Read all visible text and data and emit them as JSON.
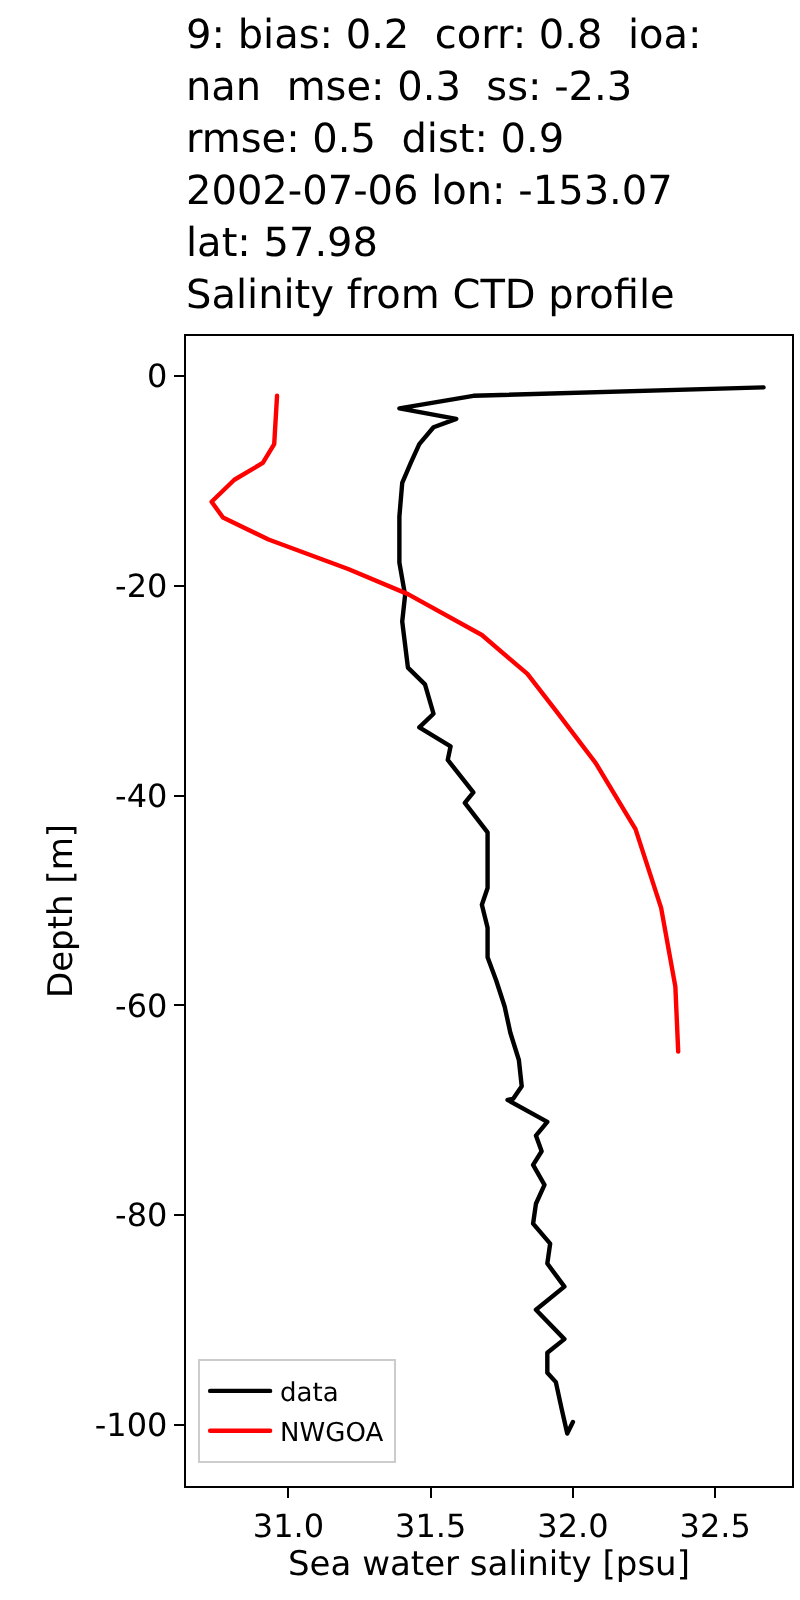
{
  "chart_data": {
    "type": "line",
    "title": "9: bias: 0.2  corr: 0.8  ioa:\nnan  mse: 0.3  ss: -2.3\nrmse: 0.5  dist: 0.9\n2002-07-06 lon: -153.07\nlat: 57.98\nSalinity from CTD profile",
    "xlabel": "Sea water salinity [psu]",
    "ylabel": "Depth [m]",
    "xlim": [
      30.64,
      32.77
    ],
    "ylim": [
      -105.8,
      3.8
    ],
    "xticks": [
      {
        "value": 31,
        "label": "31.0"
      },
      31.5,
      {
        "value": 32,
        "label": "32.0"
      },
      32.5
    ],
    "yticks": [
      0,
      -20,
      -40,
      -60,
      -80,
      -100
    ],
    "legend": "bottom left",
    "marker": "none",
    "line_style": "solid",
    "series": [
      {
        "name": "data",
        "color": "#000000",
        "x": [
          32.67,
          31.65,
          31.39,
          31.59,
          31.51,
          31.46,
          31.43,
          31.4,
          31.39,
          31.39,
          31.41,
          31.4,
          31.42,
          31.48,
          31.51,
          31.46,
          31.57,
          31.56,
          31.65,
          31.62,
          31.7,
          31.7,
          31.7,
          31.68,
          31.7,
          31.7,
          31.73,
          31.76,
          31.78,
          31.81,
          31.82,
          31.79,
          31.77,
          31.91,
          31.87,
          31.89,
          31.86,
          31.9,
          31.87,
          31.86,
          31.92,
          31.91,
          31.97,
          31.87,
          31.97,
          31.91,
          31.91,
          31.94,
          31.96,
          31.98,
          32.0
        ],
        "values": [
          -1.1,
          -1.9,
          -3.1,
          -4.1,
          -4.9,
          -6.5,
          -8.3,
          -10.2,
          -13.4,
          -17.8,
          -20.9,
          -23.4,
          -27.8,
          -29.4,
          -32.2,
          -33.5,
          -35.3,
          -36.6,
          -39.7,
          -40.7,
          -43.5,
          -45.4,
          -48.8,
          -50.4,
          -52.6,
          -55.4,
          -57.6,
          -60.1,
          -62.6,
          -65.2,
          -67.7,
          -68.9,
          -69.0,
          -71.1,
          -72.4,
          -73.9,
          -75.2,
          -77.1,
          -78.9,
          -80.8,
          -82.7,
          -84.6,
          -86.8,
          -89.0,
          -91.8,
          -93.1,
          -95.0,
          -95.9,
          -98.4,
          -100.8,
          -99.7
        ]
      },
      {
        "name": "NWGOA",
        "color": "#ff0000",
        "x": [
          30.96,
          30.95,
          30.91,
          30.81,
          30.73,
          30.77,
          30.93,
          31.21,
          31.42,
          31.68,
          31.84,
          31.94,
          32.08,
          32.22,
          32.31,
          32.36,
          32.37
        ],
        "values": [
          -1.9,
          -6.5,
          -8.3,
          -9.9,
          -12.0,
          -13.5,
          -15.6,
          -18.4,
          -20.8,
          -24.7,
          -28.4,
          -31.9,
          -36.9,
          -43.2,
          -50.7,
          -58.2,
          -64.4
        ]
      }
    ]
  }
}
